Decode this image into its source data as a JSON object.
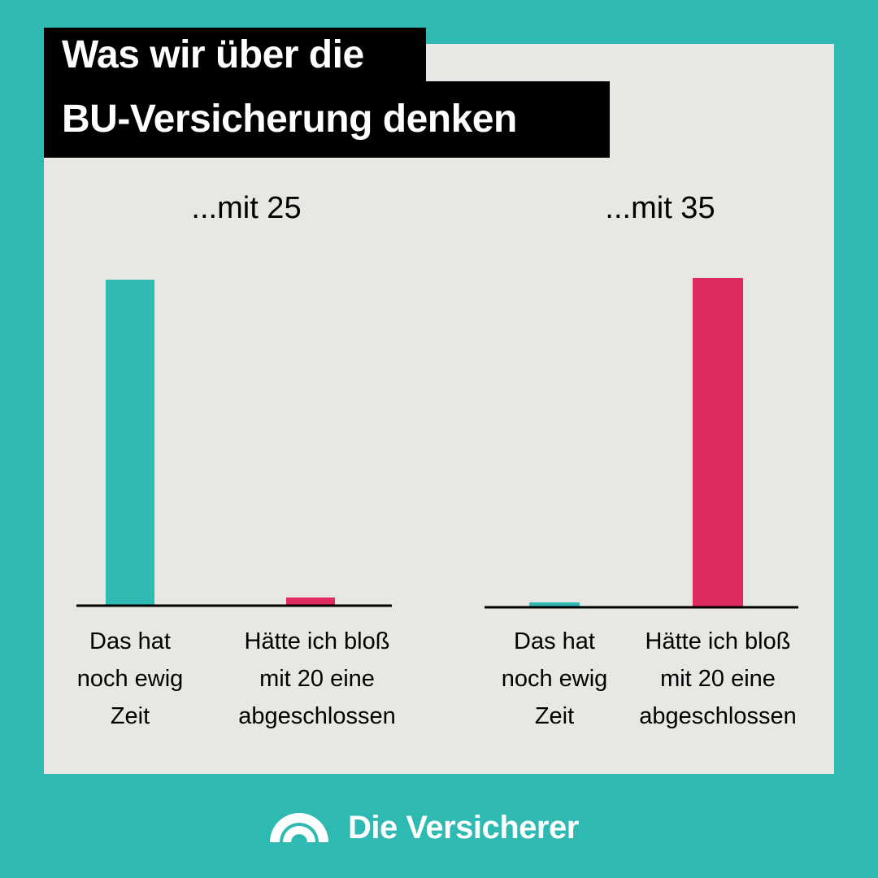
{
  "title": {
    "line1": "Was wir über die",
    "line2": "BU-Versicherung denken"
  },
  "brand": {
    "name": "Die Versicherer",
    "logo_icon": "rising-sun-arc-icon"
  },
  "colors": {
    "teal": "#2EB9B2",
    "panel": "#E8E7E3",
    "pink": "#DE2A5E",
    "black": "#000000",
    "white": "#FFFFFF"
  },
  "chart_data": [
    {
      "type": "bar",
      "title": "...mit 25",
      "categories": [
        [
          "Das hat",
          "noch ewig",
          "Zeit"
        ],
        [
          "Hätte ich bloß",
          "mit 20 eine",
          "abgeschlossen"
        ]
      ],
      "values": [
        100,
        2.5
      ],
      "bar_colors": [
        "#2EB9B2",
        "#DE2A5E"
      ],
      "ylim": [
        0,
        100
      ],
      "grid": false,
      "legend": "none"
    },
    {
      "type": "bar",
      "title": "...mit 35",
      "categories": [
        [
          "Das hat",
          "noch ewig",
          "Zeit"
        ],
        [
          "Hätte ich bloß",
          "mit 20 eine",
          "abgeschlossen"
        ]
      ],
      "values": [
        1.5,
        100
      ],
      "bar_colors": [
        "#2EB9B2",
        "#DE2A5E"
      ],
      "ylim": [
        0,
        100
      ],
      "grid": false,
      "legend": "none"
    }
  ]
}
